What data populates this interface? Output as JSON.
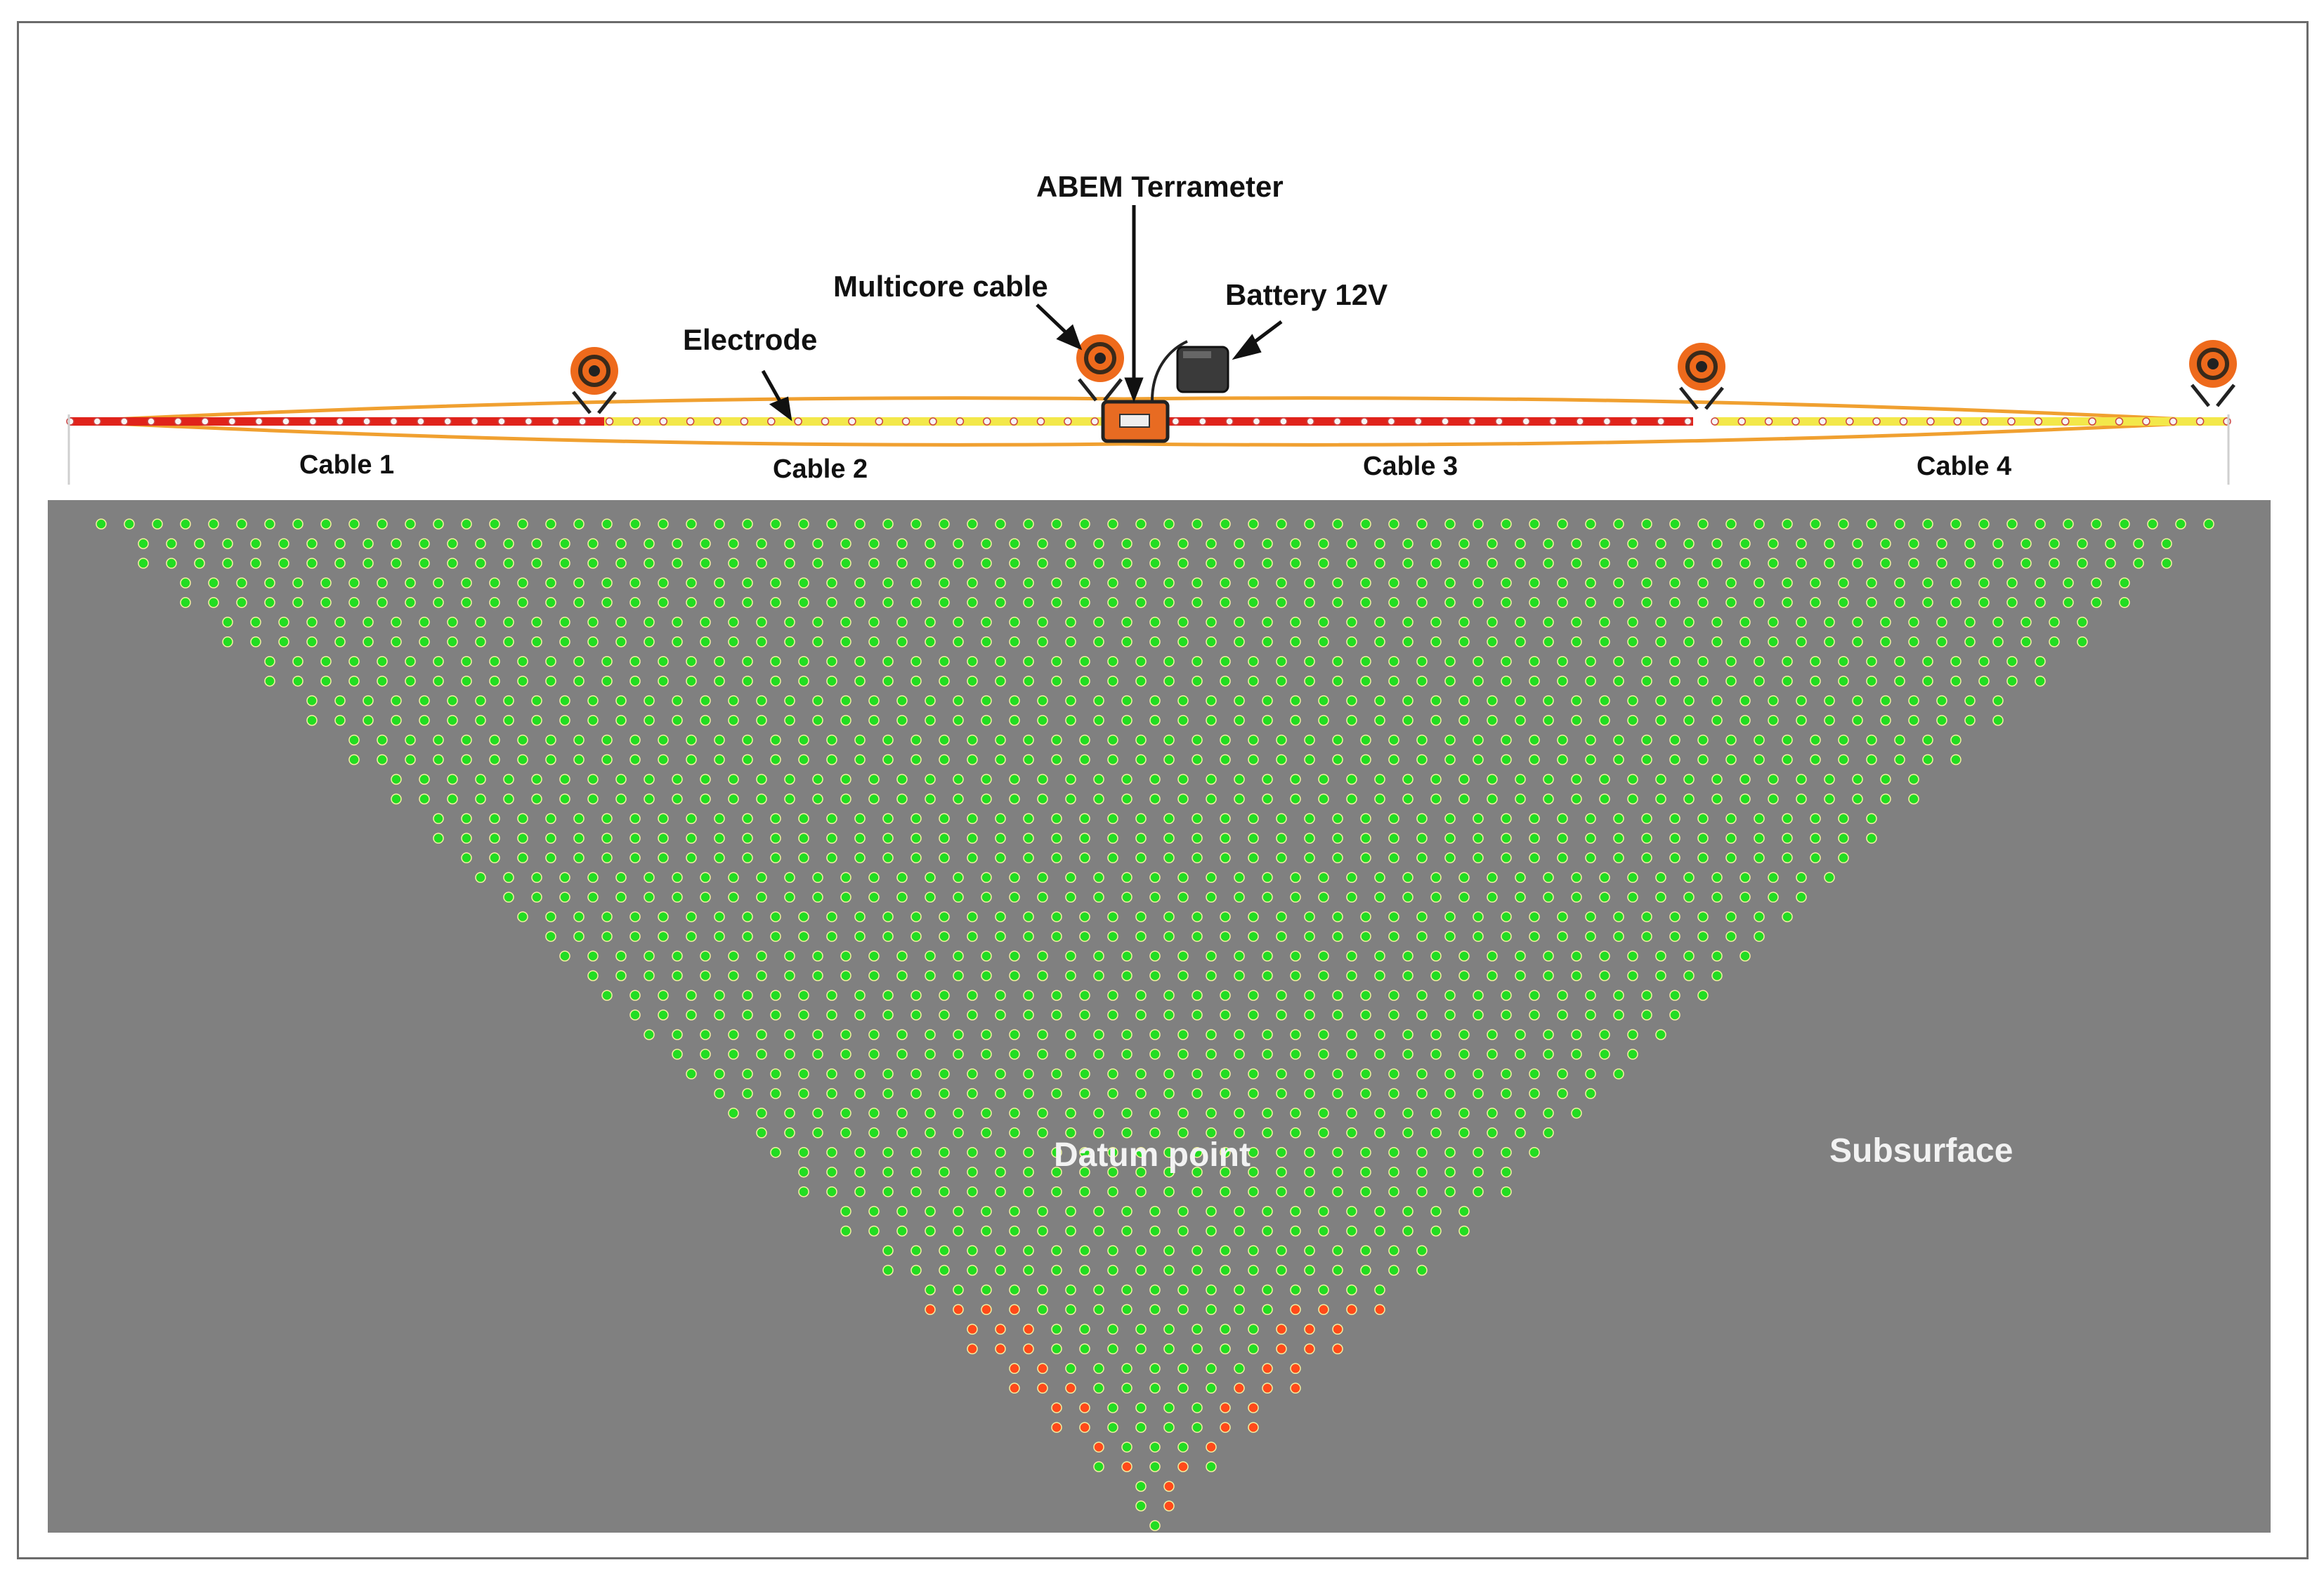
{
  "labels": {
    "terrameter": "ABEM Terrameter",
    "multicore": "Multicore cable",
    "battery": "Battery 12V",
    "electrode": "Electrode",
    "cable1": "Cable 1",
    "cable2": "Cable 2",
    "cable3": "Cable 3",
    "cable4": "Cable 4",
    "datum": "Datum point",
    "subsurface": "Subsurface"
  },
  "colors": {
    "subsurface": "#808080",
    "cable_red": "#e0231b",
    "cable_yellow": "#f3e84a",
    "cable_outline": "#f0a030",
    "reel": "#ee6a1c",
    "datum_good": "#22dd22",
    "datum_deep": "#ff4a1a"
  },
  "icons": [
    "cable-reel-icon",
    "terrameter-icon",
    "battery-icon"
  ]
}
